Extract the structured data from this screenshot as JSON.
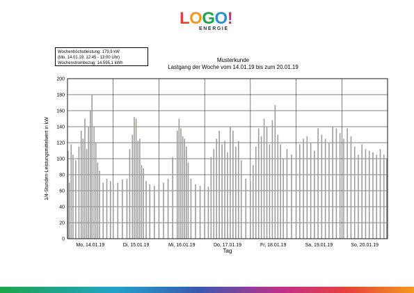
{
  "logo": {
    "letters": [
      {
        "char": "L",
        "color": "#e8403a"
      },
      {
        "char": "O",
        "color": "#f39a1e"
      },
      {
        "char": "G",
        "color": "#1aa64b"
      },
      {
        "char": "O",
        "color": "#2a8fd0"
      },
      {
        "char": "!",
        "color": "#c0308a"
      }
    ],
    "subtitle": "ENERGIE"
  },
  "info": {
    "line1": "Wochenhöchstleistung: 179,9 kW",
    "line2": "(Mo, 14.01.19; 12:45 - 13:00 Uhr)",
    "line3": "Wochenstrombezug: 14.595,1 kWh"
  },
  "chart_data": {
    "type": "bar",
    "title": "Musterkunde",
    "subtitle": "Lastgang der Woche vom 14.01.19 bis zum 20.01.19",
    "xlabel": "Tag",
    "ylabel": "1/4-Stunden-Leistungsmittelwert in kW",
    "ylim": [
      0,
      200
    ],
    "yticks": [
      0,
      20,
      40,
      60,
      80,
      100,
      120,
      140,
      160,
      180,
      200
    ],
    "xlim": [
      0,
      7
    ],
    "categories": [
      "Mo, 14.01.19",
      "Di, 15.01.19",
      "Mi, 16.01.19",
      "Do, 17.01.19",
      "Fr, 18.01.19",
      "Sa, 19.01.19",
      "So, 20.01.19"
    ],
    "grid": true,
    "bar_color": "#a09c9a",
    "peak": {
      "value": 179.9,
      "x": 0.536
    },
    "x": [
      0.0,
      0.04,
      0.08,
      0.12,
      0.18,
      0.25,
      0.3,
      0.34,
      0.38,
      0.42,
      0.46,
      0.5,
      0.536,
      0.58,
      0.62,
      0.66,
      0.7,
      0.78,
      0.86,
      0.94,
      1.0,
      1.1,
      1.2,
      1.3,
      1.36,
      1.42,
      1.46,
      1.5,
      1.54,
      1.58,
      1.62,
      1.66,
      1.72,
      1.8,
      1.9,
      2.0,
      2.1,
      2.2,
      2.3,
      2.4,
      2.44,
      2.48,
      2.52,
      2.56,
      2.6,
      2.64,
      2.7,
      2.8,
      2.9,
      3.0,
      3.08,
      3.14,
      3.2,
      3.26,
      3.32,
      3.38,
      3.44,
      3.5,
      3.56,
      3.62,
      3.68,
      3.74,
      3.8,
      3.9,
      4.0,
      4.06,
      4.12,
      4.18,
      4.24,
      4.3,
      4.36,
      4.42,
      4.48,
      4.54,
      4.6,
      4.66,
      4.72,
      4.8,
      4.9,
      5.0,
      5.08,
      5.16,
      5.24,
      5.32,
      5.4,
      5.48,
      5.56,
      5.64,
      5.72,
      5.8,
      5.88,
      5.96,
      6.04,
      6.12,
      6.2,
      6.28,
      6.36,
      6.44,
      6.52,
      6.6,
      6.68,
      6.76,
      6.84,
      6.92,
      6.98
    ],
    "values": [
      110,
      70,
      118,
      105,
      98,
      115,
      135,
      125,
      150,
      112,
      140,
      160,
      179.9,
      140,
      120,
      95,
      85,
      70,
      75,
      72,
      68,
      70,
      74,
      75,
      112,
      130,
      152,
      150,
      122,
      125,
      92,
      88,
      72,
      68,
      66,
      68,
      70,
      75,
      102,
      135,
      150,
      138,
      128,
      125,
      115,
      95,
      75,
      68,
      66,
      68,
      65,
      102,
      112,
      125,
      135,
      118,
      122,
      108,
      140,
      135,
      115,
      122,
      98,
      75,
      72,
      92,
      115,
      138,
      128,
      150,
      140,
      118,
      148,
      167,
      130,
      118,
      100,
      112,
      105,
      110,
      118,
      125,
      128,
      120,
      110,
      138,
      130,
      125,
      120,
      140,
      138,
      132,
      125,
      138,
      128,
      115,
      105,
      118,
      112,
      110,
      108,
      105,
      112,
      105,
      100
    ]
  }
}
